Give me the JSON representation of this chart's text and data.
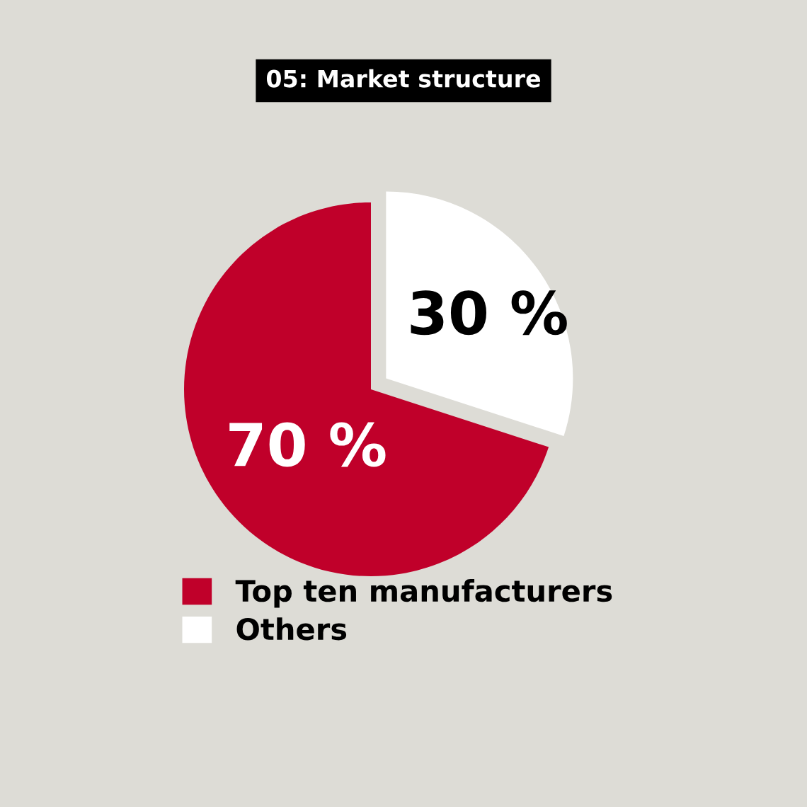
{
  "chart_data": {
    "type": "pie",
    "title": "05: Market structure",
    "categories": [
      "Top ten manufacturers",
      "Others"
    ],
    "values": [
      70,
      30
    ],
    "colors": [
      "#c0002a",
      "#ffffff"
    ],
    "value_labels": [
      "70 %",
      "30 %"
    ],
    "legend": "bottom"
  }
}
